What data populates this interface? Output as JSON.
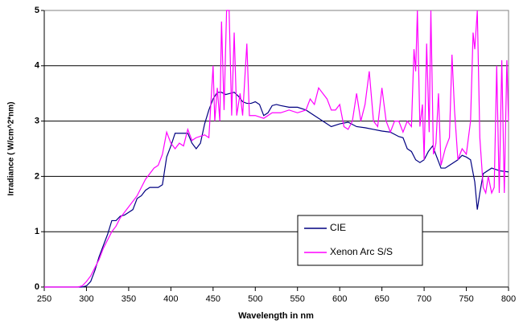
{
  "chart_data": {
    "type": "line",
    "xlabel": "Wavelength in nm",
    "ylabel": "Irradiance ( W/cm^2*nm)",
    "xlim": [
      250,
      800
    ],
    "xticks": [
      250,
      300,
      350,
      400,
      450,
      500,
      550,
      600,
      650,
      700,
      750,
      800
    ],
    "ylim": [
      0,
      5
    ],
    "yticks": [
      0,
      1,
      2,
      3,
      4,
      5
    ],
    "grid": true,
    "legend": "lower right",
    "series": [
      {
        "name": "CIE",
        "color": "#000080",
        "x": [
          250,
          260,
          270,
          280,
          290,
          295,
          300,
          305,
          310,
          315,
          320,
          325,
          330,
          335,
          340,
          345,
          350,
          355,
          360,
          365,
          370,
          375,
          380,
          385,
          390,
          395,
          400,
          405,
          410,
          415,
          420,
          425,
          430,
          435,
          440,
          445,
          450,
          455,
          460,
          465,
          470,
          475,
          480,
          485,
          490,
          495,
          500,
          505,
          510,
          515,
          520,
          525,
          530,
          540,
          550,
          560,
          570,
          580,
          590,
          600,
          610,
          620,
          630,
          640,
          650,
          660,
          670,
          675,
          680,
          685,
          690,
          695,
          700,
          705,
          710,
          715,
          720,
          725,
          730,
          740,
          745,
          750,
          755,
          760,
          763,
          766,
          770,
          780,
          790,
          800
        ],
        "values": [
          0,
          0,
          0,
          0,
          0,
          0,
          0.02,
          0.1,
          0.3,
          0.55,
          0.75,
          0.95,
          1.2,
          1.2,
          1.28,
          1.3,
          1.35,
          1.4,
          1.6,
          1.65,
          1.75,
          1.8,
          1.8,
          1.8,
          1.85,
          2.35,
          2.55,
          2.78,
          2.78,
          2.78,
          2.78,
          2.6,
          2.5,
          2.6,
          2.95,
          3.2,
          3.4,
          3.52,
          3.52,
          3.48,
          3.5,
          3.52,
          3.45,
          3.35,
          3.32,
          3.32,
          3.35,
          3.3,
          3.1,
          3.15,
          3.28,
          3.3,
          3.28,
          3.25,
          3.25,
          3.2,
          3.1,
          3.0,
          2.9,
          2.95,
          2.98,
          2.9,
          2.88,
          2.85,
          2.82,
          2.8,
          2.72,
          2.7,
          2.5,
          2.45,
          2.3,
          2.25,
          2.3,
          2.45,
          2.55,
          2.35,
          2.15,
          2.15,
          2.2,
          2.3,
          2.38,
          2.35,
          2.3,
          1.9,
          1.4,
          1.7,
          2.05,
          2.15,
          2.1,
          2.08
        ]
      },
      {
        "name": "Xenon Arc S/S",
        "color": "#ff00ff",
        "x": [
          250,
          260,
          270,
          280,
          290,
          295,
          300,
          305,
          310,
          315,
          320,
          325,
          330,
          335,
          340,
          345,
          350,
          355,
          360,
          365,
          370,
          375,
          380,
          385,
          390,
          395,
          400,
          405,
          410,
          415,
          420,
          425,
          430,
          440,
          445,
          450,
          452,
          455,
          458,
          460,
          463,
          466,
          469,
          472,
          475,
          478,
          482,
          485,
          490,
          493,
          500,
          510,
          520,
          530,
          540,
          550,
          560,
          565,
          570,
          575,
          580,
          585,
          590,
          595,
          600,
          605,
          610,
          615,
          620,
          625,
          630,
          635,
          640,
          645,
          650,
          655,
          660,
          665,
          670,
          675,
          680,
          685,
          688,
          690,
          692,
          695,
          698,
          700,
          703,
          706,
          708,
          711,
          714,
          717,
          720,
          725,
          730,
          733,
          736,
          740,
          745,
          750,
          755,
          758,
          760,
          763,
          766,
          770,
          773,
          776,
          780,
          783,
          786,
          789,
          792,
          795,
          798,
          800
        ],
        "values": [
          0,
          0,
          0,
          0,
          0,
          0.02,
          0.1,
          0.2,
          0.35,
          0.5,
          0.7,
          0.85,
          1.0,
          1.1,
          1.25,
          1.35,
          1.45,
          1.55,
          1.65,
          1.8,
          1.95,
          2.05,
          2.15,
          2.2,
          2.4,
          2.8,
          2.6,
          2.5,
          2.6,
          2.55,
          2.85,
          2.65,
          2.7,
          2.75,
          2.7,
          4.0,
          3.0,
          3.6,
          3.0,
          4.8,
          3.2,
          5.0,
          5.0,
          3.1,
          4.6,
          3.1,
          3.5,
          3.1,
          4.4,
          3.1,
          3.1,
          3.05,
          3.15,
          3.15,
          3.2,
          3.15,
          3.2,
          3.4,
          3.3,
          3.6,
          3.5,
          3.4,
          3.2,
          3.2,
          3.3,
          2.9,
          2.85,
          3.0,
          3.5,
          3.0,
          3.3,
          3.9,
          3.0,
          2.9,
          3.6,
          3.0,
          2.8,
          3.0,
          3.0,
          2.8,
          3.0,
          2.9,
          4.3,
          3.9,
          5.0,
          2.9,
          3.3,
          2.3,
          4.4,
          2.8,
          5.0,
          2.4,
          2.6,
          3.5,
          2.2,
          2.5,
          2.7,
          4.2,
          3.2,
          2.3,
          2.5,
          2.4,
          3.0,
          4.6,
          4.3,
          5.0,
          2.7,
          1.8,
          1.7,
          2.0,
          1.7,
          1.8,
          4.0,
          1.7,
          4.1,
          1.7,
          4.1,
          3.0
        ]
      }
    ]
  }
}
